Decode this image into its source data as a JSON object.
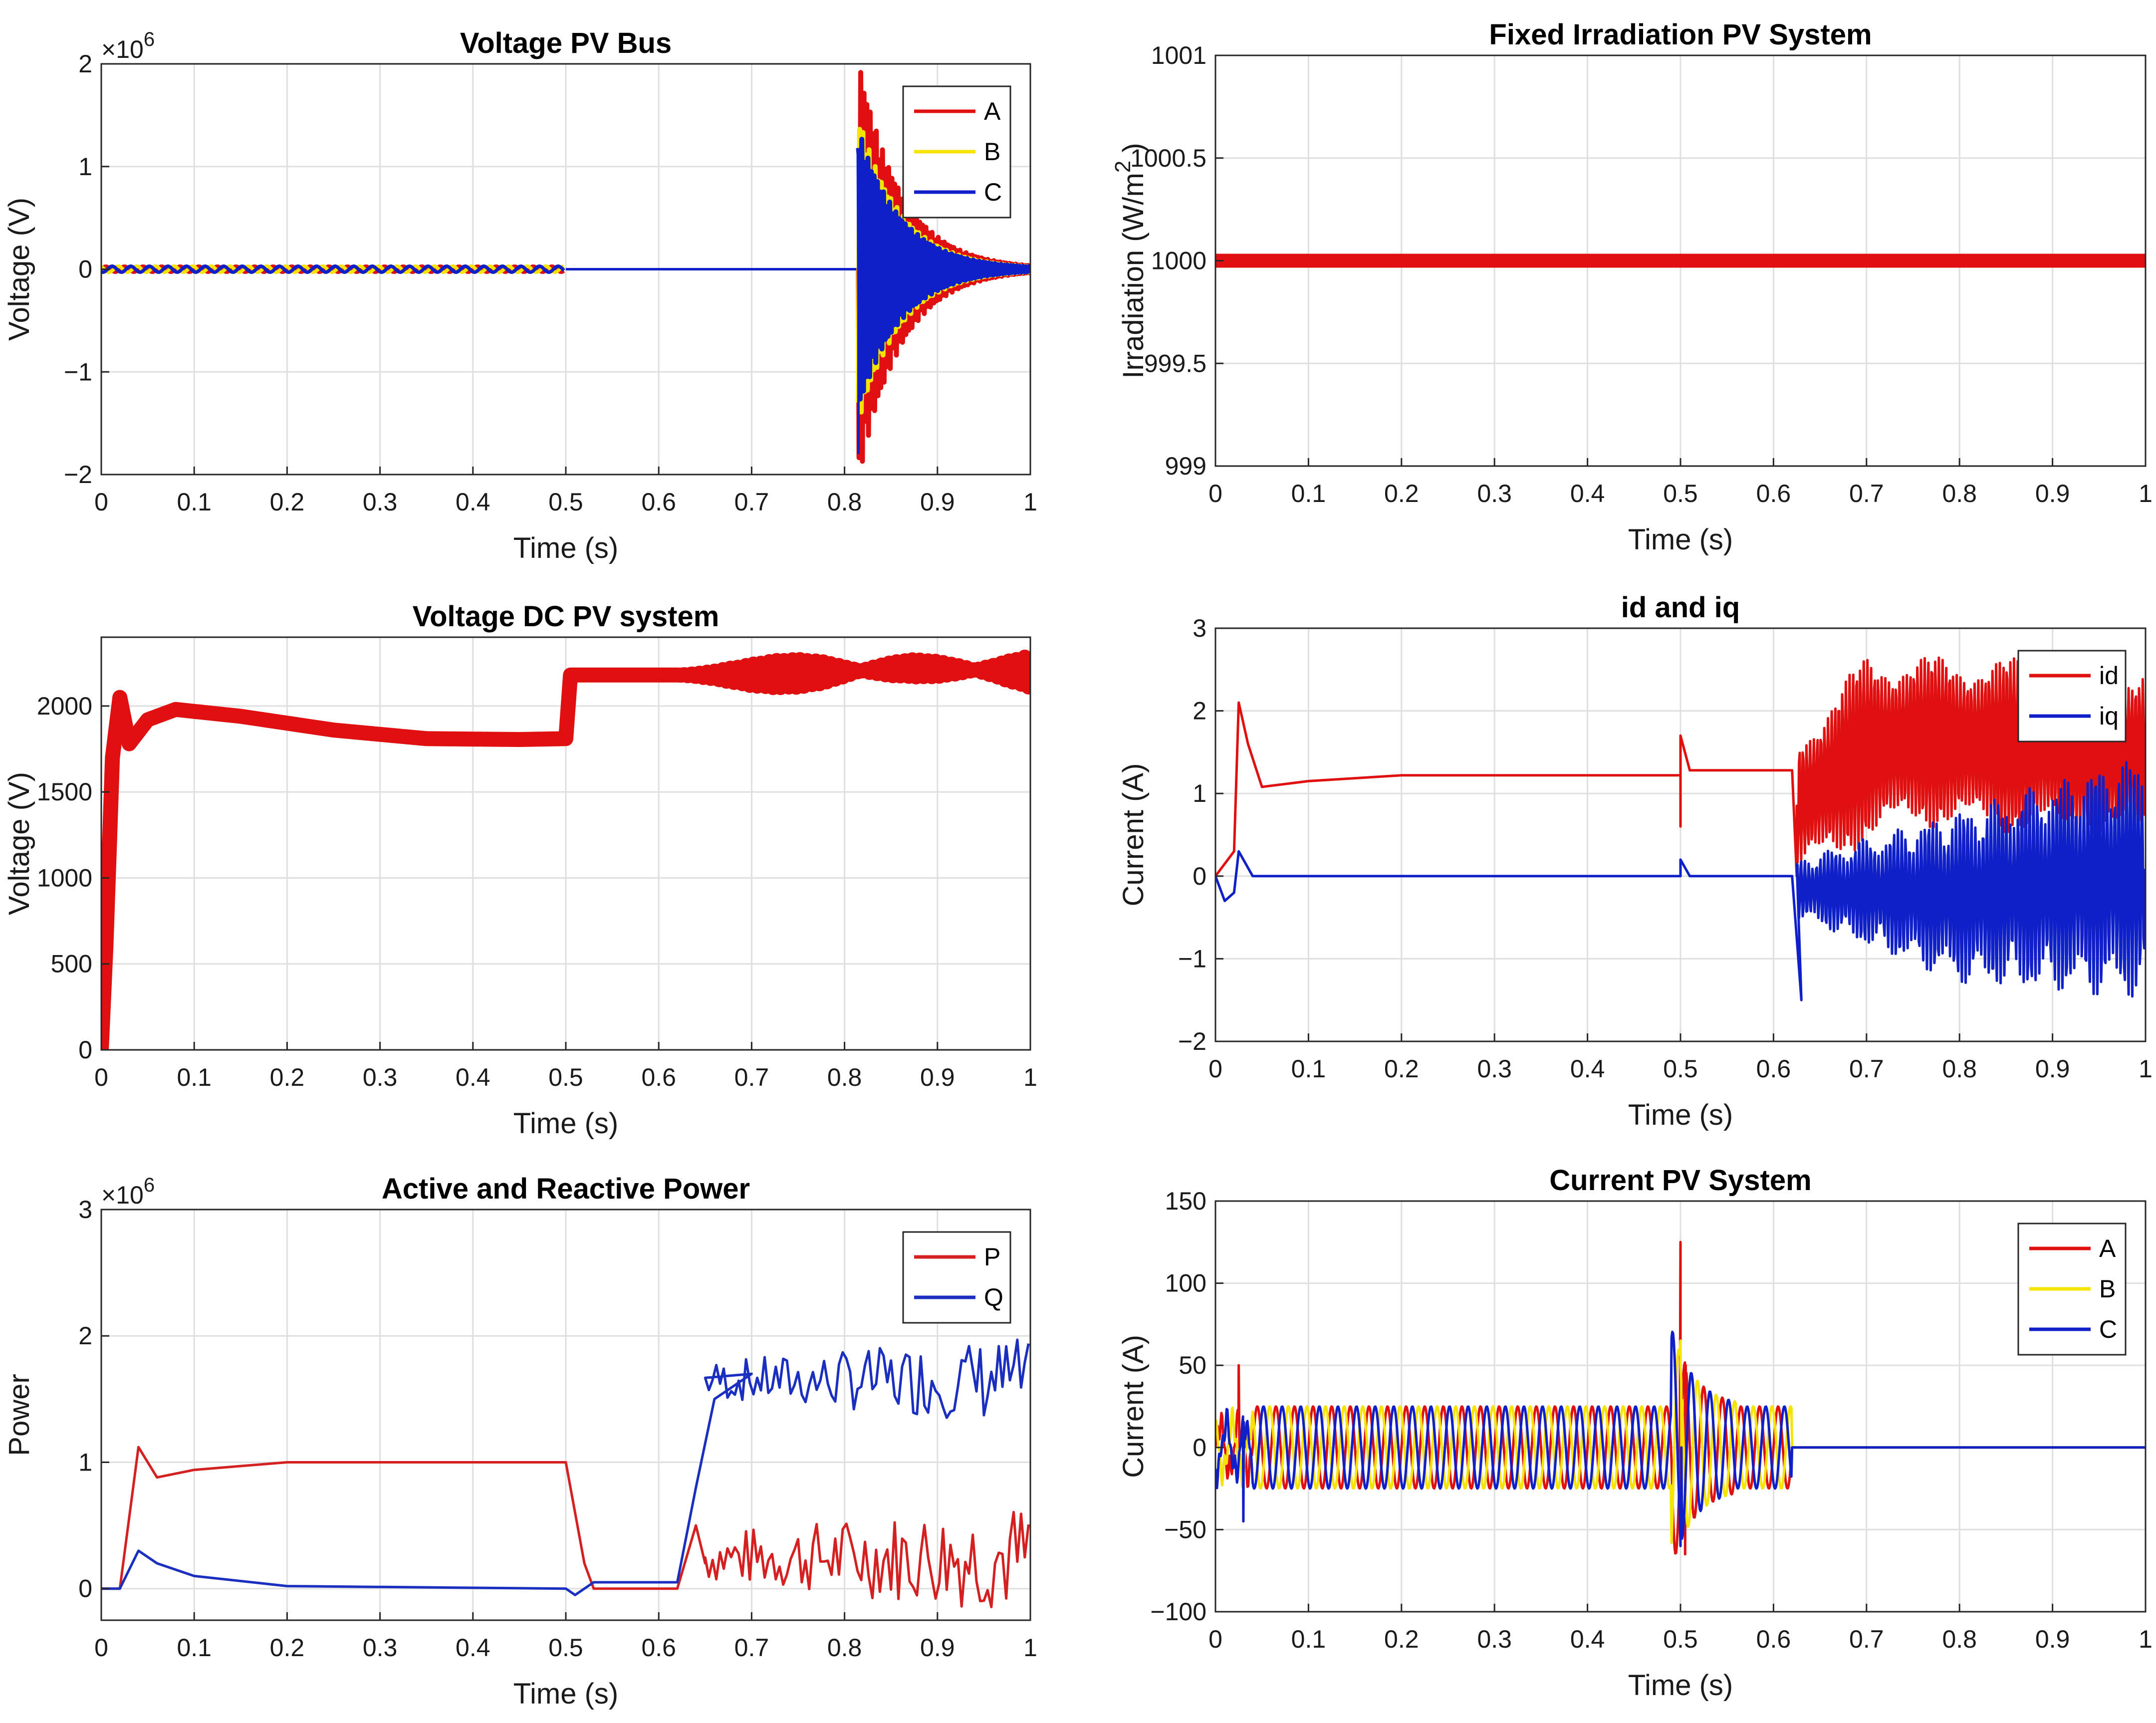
{
  "colors": {
    "red": "#e01010",
    "yellow": "#f5e400",
    "blue": "#1020c8",
    "line_red": "#d42020",
    "line_blue": "#1a2ec0"
  },
  "chart_data": [
    {
      "id": "voltage_pv_bus",
      "type": "line",
      "title": "Voltage PV Bus",
      "xlabel": "Time (s)",
      "ylabel": "Voltage (V)",
      "exponent_label": "×10",
      "exponent_power": "6",
      "xlim": [
        0,
        1
      ],
      "ylim": [
        -2,
        2
      ],
      "xticks": [
        "0",
        "0.1",
        "0.2",
        "0.3",
        "0.4",
        "0.5",
        "0.6",
        "0.7",
        "0.8",
        "0.9",
        "1"
      ],
      "yticks": [
        "−2",
        "−1",
        "0",
        "1",
        "2"
      ],
      "legend": [
        "A",
        "B",
        "C"
      ],
      "legend_position": "top-right",
      "series": [
        {
          "name": "A",
          "color": "red",
          "points": [
            [
              0,
              0.03
            ],
            [
              0.5,
              0.03
            ],
            [
              0.5,
              0
            ],
            [
              0.81,
              0
            ],
            [
              0.825,
              1.65
            ],
            [
              0.84,
              1.3
            ],
            [
              0.86,
              0.6
            ],
            [
              0.88,
              0.35
            ],
            [
              0.92,
              0.15
            ],
            [
              1,
              0.05
            ]
          ]
        },
        {
          "name": "B",
          "color": "yellow",
          "points": [
            [
              0,
              0.03
            ],
            [
              0.5,
              0.03
            ],
            [
              0.5,
              0
            ],
            [
              0.81,
              0
            ],
            [
              0.825,
              1.2
            ],
            [
              0.85,
              0.6
            ],
            [
              0.9,
              0.2
            ],
            [
              1,
              0.05
            ]
          ]
        },
        {
          "name": "C",
          "color": "blue",
          "points": [
            [
              0,
              0.03
            ],
            [
              0.5,
              0.03
            ],
            [
              0.5,
              0
            ],
            [
              0.81,
              0
            ],
            [
              0.815,
              -1.8
            ],
            [
              0.825,
              1.1
            ],
            [
              0.86,
              0.65
            ],
            [
              0.9,
              0.2
            ],
            [
              1,
              0.05
            ]
          ]
        }
      ]
    },
    {
      "id": "fixed_irradiation",
      "type": "line",
      "title": "Fixed Irradiation PV System",
      "xlabel": "Time (s)",
      "ylabel": "Irradiation  (W/m",
      "ylabel_sup": "2",
      "xlim": [
        0,
        1
      ],
      "ylim": [
        999,
        1001
      ],
      "xticks": [
        "0",
        "0.1",
        "0.2",
        "0.3",
        "0.4",
        "0.5",
        "0.6",
        "0.7",
        "0.8",
        "0.9",
        "1"
      ],
      "yticks": [
        "999",
        "999.5",
        "1000",
        "1000.5",
        "1001"
      ],
      "series": [
        {
          "name": "Irradiation",
          "color": "red",
          "points": [
            [
              0,
              1000
            ],
            [
              1,
              1000
            ]
          ]
        }
      ]
    },
    {
      "id": "voltage_dc",
      "type": "line",
      "title": "Voltage DC PV system",
      "xlabel": "Time (s)",
      "ylabel": "Voltage (V)",
      "xlim": [
        0,
        1
      ],
      "ylim": [
        0,
        2400
      ],
      "xticks": [
        "0",
        "0.1",
        "0.2",
        "0.3",
        "0.4",
        "0.5",
        "0.6",
        "0.7",
        "0.8",
        "0.9",
        "1"
      ],
      "yticks": [
        "0",
        "500",
        "1000",
        "1500",
        "2000"
      ],
      "ytick_values": [
        0,
        500,
        1000,
        1500,
        2000
      ],
      "series": [
        {
          "name": "Vdc",
          "color": "red",
          "points": [
            [
              0,
              0
            ],
            [
              0.005,
              600
            ],
            [
              0.012,
              1700
            ],
            [
              0.02,
              2050
            ],
            [
              0.03,
              1780
            ],
            [
              0.05,
              1920
            ],
            [
              0.08,
              1980
            ],
            [
              0.15,
              1940
            ],
            [
              0.25,
              1860
            ],
            [
              0.35,
              1810
            ],
            [
              0.45,
              1805
            ],
            [
              0.5,
              1810
            ],
            [
              0.505,
              2180
            ],
            [
              0.62,
              2180
            ],
            [
              0.7,
              2180
            ],
            [
              0.8,
              2200
            ],
            [
              0.87,
              2220
            ],
            [
              1,
              2200
            ]
          ]
        }
      ]
    },
    {
      "id": "id_iq",
      "type": "line",
      "title": "id and iq",
      "xlabel": "Time (s)",
      "ylabel": "Current (A)",
      "xlim": [
        0,
        1
      ],
      "ylim": [
        -2,
        3
      ],
      "xticks": [
        "0",
        "0.1",
        "0.2",
        "0.3",
        "0.4",
        "0.5",
        "0.6",
        "0.7",
        "0.8",
        "0.9",
        "1"
      ],
      "yticks": [
        "−2",
        "−1",
        "0",
        "1",
        "2",
        "3"
      ],
      "ytick_values": [
        -2,
        -1,
        0,
        1,
        2,
        3
      ],
      "legend": [
        "id",
        "iq"
      ],
      "legend_position": "top-right",
      "series": [
        {
          "name": "id",
          "color": "red",
          "points": [
            [
              0,
              0
            ],
            [
              0.02,
              0.3
            ],
            [
              0.025,
              2.1
            ],
            [
              0.035,
              1.6
            ],
            [
              0.05,
              1.08
            ],
            [
              0.1,
              1.15
            ],
            [
              0.2,
              1.22
            ],
            [
              0.5,
              1.22
            ],
            [
              0.5,
              0.6
            ],
            [
              0.5,
              1.7
            ],
            [
              0.51,
              1.28
            ],
            [
              0.62,
              1.28
            ],
            [
              0.625,
              0
            ]
          ]
        },
        {
          "name": "iq",
          "color": "blue",
          "points": [
            [
              0,
              0
            ],
            [
              0.01,
              -0.3
            ],
            [
              0.02,
              -0.2
            ],
            [
              0.025,
              0.3
            ],
            [
              0.04,
              0
            ],
            [
              0.5,
              0
            ],
            [
              0.5,
              0.2
            ],
            [
              0.51,
              0
            ],
            [
              0.62,
              0
            ],
            [
              0.63,
              -1.5
            ]
          ]
        }
      ],
      "oscillation": {
        "start": 0.625,
        "end": 1,
        "id_upper": [
          0.625,
          1.7,
          0.7,
          2.7,
          1,
          2.6
        ],
        "id_lower": [
          0.625,
          0,
          0.75,
          0.6,
          1,
          0.4
        ],
        "iq_upper": [
          0.625,
          0.2,
          0.8,
          0.8,
          1,
          1.5
        ],
        "iq_lower": [
          0.625,
          -0.5,
          0.8,
          -1.3,
          1,
          -1.5
        ]
      }
    },
    {
      "id": "active_reactive_power",
      "type": "line",
      "title": "Active and Reactive Power",
      "xlabel": "Time (s)",
      "ylabel": "Power",
      "exponent_label": "×10",
      "exponent_power": "6",
      "xlim": [
        0,
        1
      ],
      "ylim": [
        -0.25,
        3
      ],
      "xticks": [
        "0",
        "0.1",
        "0.2",
        "0.3",
        "0.4",
        "0.5",
        "0.6",
        "0.7",
        "0.8",
        "0.9",
        "1"
      ],
      "yticks": [
        "0",
        "1",
        "2",
        "3"
      ],
      "ytick_values": [
        0,
        1,
        2,
        3
      ],
      "legend": [
        "P",
        "Q"
      ],
      "legend_position": "top-right",
      "series": [
        {
          "name": "P",
          "color": "line_red",
          "points": [
            [
              0,
              0
            ],
            [
              0.02,
              0
            ],
            [
              0.04,
              1.12
            ],
            [
              0.06,
              0.88
            ],
            [
              0.1,
              0.94
            ],
            [
              0.2,
              1.0
            ],
            [
              0.3,
              1.0
            ],
            [
              0.5,
              1.0
            ],
            [
              0.52,
              0.2
            ],
            [
              0.53,
              0
            ],
            [
              0.62,
              0
            ],
            [
              0.64,
              0.5
            ],
            [
              0.65,
              0.2
            ]
          ]
        },
        {
          "name": "Q",
          "color": "line_blue",
          "points": [
            [
              0,
              0
            ],
            [
              0.02,
              0
            ],
            [
              0.04,
              0.3
            ],
            [
              0.06,
              0.2
            ],
            [
              0.1,
              0.1
            ],
            [
              0.2,
              0.02
            ],
            [
              0.5,
              0
            ],
            [
              0.51,
              -0.05
            ],
            [
              0.53,
              0.05
            ],
            [
              0.62,
              0.05
            ],
            [
              0.64,
              0.8
            ],
            [
              0.66,
              1.5
            ],
            [
              0.7,
              1.7
            ]
          ]
        }
      ],
      "oscillation": {
        "start": 0.65,
        "end": 1,
        "P_mid": 0.25,
        "P_amp": [
          0.65,
          0.2,
          1,
          0.45
        ],
        "Q_mid": 1.65,
        "Q_amp": [
          0.65,
          0.15,
          1,
          0.35
        ]
      }
    },
    {
      "id": "current_pv_system",
      "type": "line",
      "title": "Current PV System",
      "xlabel": "Time (s)",
      "ylabel": "Current (A)",
      "xlim": [
        0,
        1
      ],
      "ylim": [
        -100,
        150
      ],
      "xticks": [
        "0",
        "0.1",
        "0.2",
        "0.3",
        "0.4",
        "0.5",
        "0.6",
        "0.7",
        "0.8",
        "0.9",
        "1"
      ],
      "yticks": [
        "−100",
        "−50",
        "0",
        "50",
        "100",
        "150"
      ],
      "ytick_values": [
        -100,
        -50,
        0,
        50,
        100,
        150
      ],
      "legend": [
        "A",
        "B",
        "C"
      ],
      "legend_position": "top-right",
      "series": [
        {
          "name": "A",
          "color": "red",
          "frequency_hz": 50,
          "amplitude": 25,
          "cutoff": 0.62,
          "spikes": [
            [
              0.025,
              50
            ],
            [
              0.5,
              125
            ],
            [
              0.505,
              -65
            ]
          ]
        },
        {
          "name": "B",
          "color": "yellow",
          "frequency_hz": 50,
          "amplitude": 25,
          "cutoff": 0.62,
          "spikes": [
            [
              0.5,
              65
            ]
          ]
        },
        {
          "name": "C",
          "color": "blue",
          "frequency_hz": 50,
          "amplitude": 25,
          "cutoff": 0.62,
          "spikes": [
            [
              0.03,
              -45
            ],
            [
              0.5,
              -60
            ]
          ]
        }
      ]
    }
  ]
}
